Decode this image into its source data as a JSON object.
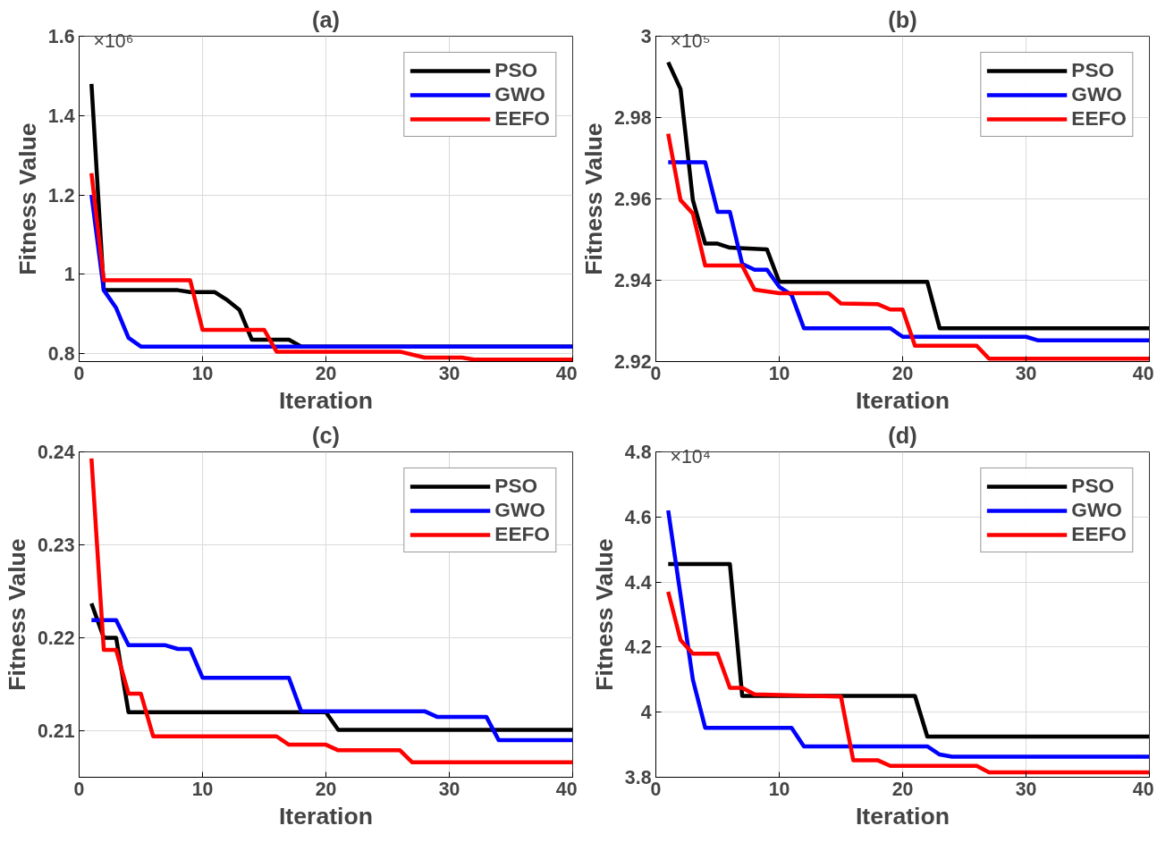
{
  "chart_data": [
    {
      "type": "line",
      "title": "(a)",
      "xlabel": "Iteration",
      "ylabel": "Fitness Value",
      "annotations": [
        "×10⁶"
      ],
      "xlim": [
        0,
        40
      ],
      "ylim": [
        0.78,
        1.6
      ],
      "xticks": [
        0,
        10,
        20,
        30,
        40
      ],
      "yticks": [
        0.8,
        1,
        1.2,
        1.4,
        1.6
      ],
      "grid": true,
      "legend": "top right",
      "line_style": "solid",
      "series": [
        {
          "name": "PSO",
          "color": "#000000",
          "x": [
            1,
            2,
            8,
            9,
            11,
            12,
            13,
            14,
            17,
            18,
            40
          ],
          "values": [
            1.48,
            0.96,
            0.96,
            0.955,
            0.955,
            0.935,
            0.91,
            0.835,
            0.835,
            0.818,
            0.818
          ]
        },
        {
          "name": "GWO",
          "color": "#0000ff",
          "x": [
            1,
            2,
            3,
            4,
            5,
            40
          ],
          "values": [
            1.2,
            0.96,
            0.915,
            0.84,
            0.818,
            0.818
          ]
        },
        {
          "name": "EEFO",
          "color": "#ff0000",
          "x": [
            1,
            2,
            9,
            10,
            15,
            16,
            26,
            28,
            31,
            32,
            40
          ],
          "values": [
            1.255,
            0.985,
            0.985,
            0.86,
            0.86,
            0.805,
            0.805,
            0.79,
            0.79,
            0.785,
            0.785
          ]
        }
      ]
    },
    {
      "type": "line",
      "title": "(b)",
      "xlabel": "Iteration",
      "ylabel": "Fitness Value",
      "annotations": [
        "×10⁵"
      ],
      "xlim": [
        0,
        40
      ],
      "ylim": [
        2.92,
        3.0
      ],
      "xticks": [
        0,
        10,
        20,
        30,
        40
      ],
      "yticks": [
        2.92,
        2.94,
        2.96,
        2.98,
        3
      ],
      "grid": true,
      "legend": "top right",
      "line_style": "solid",
      "series": [
        {
          "name": "PSO",
          "color": "#000000",
          "x": [
            1,
            2,
            3,
            4,
            5,
            6,
            9,
            10,
            22,
            23,
            40
          ],
          "values": [
            2.9936,
            2.987,
            2.9597,
            2.949,
            2.949,
            2.948,
            2.9476,
            2.9396,
            2.9396,
            2.9282,
            2.9282
          ]
        },
        {
          "name": "GWO",
          "color": "#0000ff",
          "x": [
            1,
            4,
            5,
            6,
            7,
            8,
            9,
            10,
            11,
            12,
            19,
            20,
            30,
            31,
            40
          ],
          "values": [
            2.969,
            2.969,
            2.9568,
            2.9568,
            2.944,
            2.9426,
            2.9426,
            2.9384,
            2.9364,
            2.9282,
            2.9282,
            2.9261,
            2.9261,
            2.9252,
            2.9252
          ]
        },
        {
          "name": "EEFO",
          "color": "#ff0000",
          "x": [
            1,
            2,
            3,
            4,
            7,
            8,
            10,
            14,
            15,
            18,
            19,
            20,
            21,
            26,
            27,
            40
          ],
          "values": [
            2.976,
            2.9597,
            2.9564,
            2.9436,
            2.9436,
            2.9377,
            2.9368,
            2.9368,
            2.9343,
            2.9341,
            2.9328,
            2.9328,
            2.9239,
            2.9239,
            2.9207,
            2.9207
          ]
        }
      ]
    },
    {
      "type": "line",
      "title": "(c)",
      "xlabel": "Iteration",
      "ylabel": "Fitness Value",
      "xlim": [
        0,
        40
      ],
      "ylim": [
        0.205,
        0.24
      ],
      "xticks": [
        0,
        10,
        20,
        30,
        40
      ],
      "yticks": [
        0.21,
        0.22,
        0.23,
        0.24
      ],
      "grid": true,
      "legend": "top right",
      "line_style": "solid",
      "series": [
        {
          "name": "PSO",
          "color": "#000000",
          "x": [
            1,
            2,
            3,
            4,
            20,
            21,
            40
          ],
          "values": [
            0.2237,
            0.22,
            0.22,
            0.212,
            0.212,
            0.2101,
            0.2101
          ]
        },
        {
          "name": "GWO",
          "color": "#0000ff",
          "x": [
            1,
            3,
            4,
            7,
            8,
            9,
            10,
            17,
            18,
            28,
            29,
            33,
            34,
            40
          ],
          "values": [
            0.2219,
            0.2219,
            0.2192,
            0.2192,
            0.2188,
            0.2188,
            0.2157,
            0.2157,
            0.2121,
            0.2121,
            0.2115,
            0.2115,
            0.209,
            0.209
          ]
        },
        {
          "name": "EEFO",
          "color": "#ff0000",
          "x": [
            1,
            2,
            3,
            4,
            5,
            6,
            16,
            17,
            20,
            21,
            26,
            27,
            40
          ],
          "values": [
            0.2393,
            0.2187,
            0.2187,
            0.214,
            0.214,
            0.2094,
            0.2094,
            0.2085,
            0.2085,
            0.2079,
            0.2079,
            0.2066,
            0.2066
          ]
        }
      ]
    },
    {
      "type": "line",
      "title": "(d)",
      "xlabel": "Iteration",
      "ylabel": "Fitness Value",
      "annotations": [
        "×10⁴"
      ],
      "xlim": [
        0,
        40
      ],
      "ylim": [
        3.8,
        4.8
      ],
      "xticks": [
        0,
        10,
        20,
        30,
        40
      ],
      "yticks": [
        3.8,
        4,
        4.2,
        4.4,
        4.6,
        4.8
      ],
      "grid": true,
      "legend": "top right",
      "line_style": "solid",
      "series": [
        {
          "name": "PSO",
          "color": "#000000",
          "x": [
            1,
            6,
            7,
            21,
            22,
            40
          ],
          "values": [
            4.455,
            4.455,
            4.05,
            4.05,
            3.925,
            3.925
          ]
        },
        {
          "name": "GWO",
          "color": "#0000ff",
          "x": [
            1,
            2,
            3,
            4,
            11,
            12,
            22,
            23,
            24,
            40
          ],
          "values": [
            4.62,
            4.36,
            4.1,
            3.952,
            3.952,
            3.895,
            3.895,
            3.87,
            3.863,
            3.863
          ]
        },
        {
          "name": "EEFO",
          "color": "#ff0000",
          "x": [
            1,
            2,
            3,
            5,
            6,
            7,
            8,
            15,
            16,
            18,
            19,
            26,
            27,
            40
          ],
          "values": [
            4.37,
            4.222,
            4.18,
            4.18,
            4.075,
            4.075,
            4.055,
            4.048,
            3.852,
            3.852,
            3.835,
            3.835,
            3.815,
            3.815
          ]
        }
      ]
    }
  ]
}
